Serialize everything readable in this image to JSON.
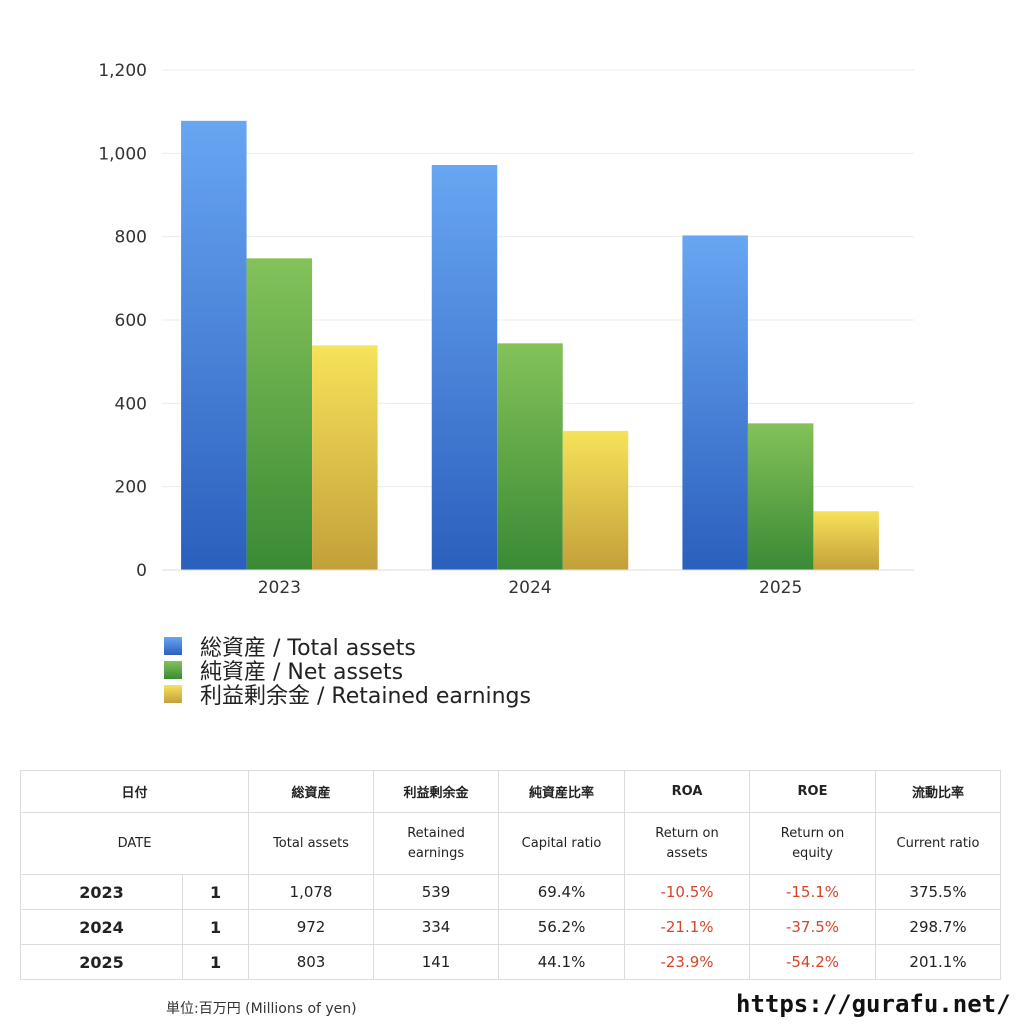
{
  "chart_data": {
    "type": "bar",
    "categories": [
      "2023",
      "2024",
      "2025"
    ],
    "series": [
      {
        "name": "総資産 / Total assets",
        "values": [
          1078,
          972,
          803
        ],
        "color_top": "#68a6f2",
        "color_bottom": "#2b5fbd"
      },
      {
        "name": "純資産 / Net assets",
        "values": [
          748,
          544,
          352
        ],
        "color_top": "#84c259",
        "color_bottom": "#3a8a35"
      },
      {
        "name": "利益剰余金 / Retained earnings",
        "values": [
          539,
          334,
          141
        ],
        "color_top": "#f7e25a",
        "color_bottom": "#c3a03a"
      }
    ],
    "ylim": [
      0,
      1200
    ],
    "yticks": [
      0,
      200,
      400,
      600,
      800,
      1000,
      1200
    ],
    "ytick_labels": [
      "0",
      "200",
      "400",
      "600",
      "800",
      "1,000",
      "1,200"
    ],
    "grid": true,
    "legend_position": "bottom"
  },
  "table": {
    "header_ja": {
      "date": "日付",
      "total_assets": "総資産",
      "retained": "利益剰余金",
      "capital_ratio": "純資産比率",
      "roa": "ROA",
      "roe": "ROE",
      "current_ratio": "流動比率"
    },
    "header_en": {
      "date": "DATE",
      "total_assets": "Total assets",
      "retained_1": "Retained",
      "retained_2": "earnings",
      "capital_ratio": "Capital ratio",
      "roa_1": "Return on",
      "roa_2": "assets",
      "roe_1": "Return on",
      "roe_2": "equity",
      "current_ratio": "Current ratio"
    },
    "rows": [
      {
        "year": "2023",
        "month": "1",
        "total_assets": "1,078",
        "retained": "539",
        "capital_ratio": "69.4%",
        "roa": "-10.5%",
        "roe": "-15.1%",
        "current_ratio": "375.5%"
      },
      {
        "year": "2024",
        "month": "1",
        "total_assets": "972",
        "retained": "334",
        "capital_ratio": "56.2%",
        "roa": "-21.1%",
        "roe": "-37.5%",
        "current_ratio": "298.7%"
      },
      {
        "year": "2025",
        "month": "1",
        "total_assets": "803",
        "retained": "141",
        "capital_ratio": "44.1%",
        "roa": "-23.9%",
        "roe": "-54.2%",
        "current_ratio": "201.1%"
      }
    ],
    "negative_color": "#d8442b"
  },
  "footer": {
    "unit": "単位:百万円 (Millions of yen)",
    "site": "https://gurafu.net/"
  }
}
